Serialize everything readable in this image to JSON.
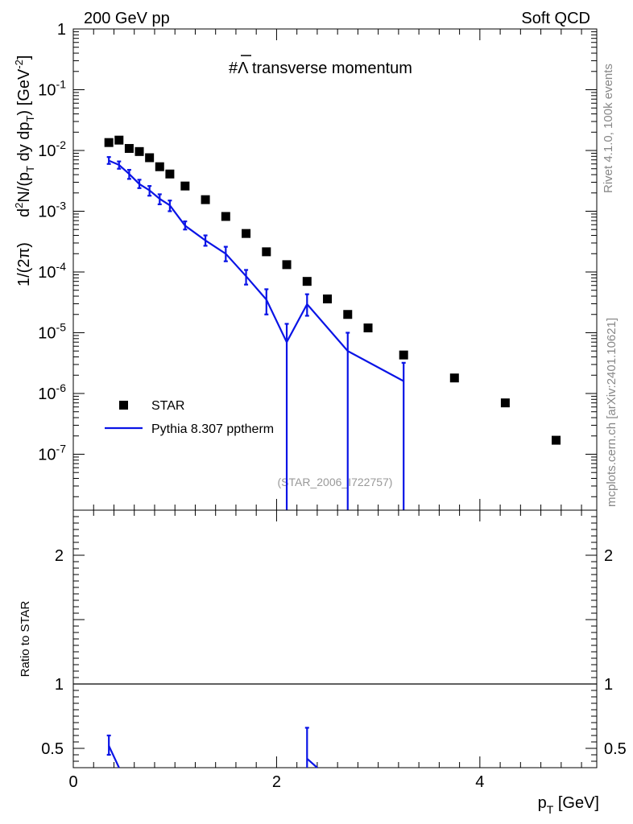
{
  "header": {
    "left": "200 GeV pp",
    "right": "Soft QCD"
  },
  "side": {
    "rivet": "Rivet 4.1.0,  100k events",
    "mcplots": "mcplots.cern.ch [arXiv:2401.10621]"
  },
  "chart_data": [
    {
      "type": "scatter",
      "title": "#Λ̅ transverse momentum",
      "title_prefix": "#",
      "title_symbol": "Λ",
      "title_rest": " transverse momentum",
      "ylabel_prefix": "1/(2π)",
      "ylabel_parts": [
        "d",
        "2",
        "N/(p",
        "T",
        " dy dp",
        "T",
        ") [GeV",
        "-2",
        "]"
      ],
      "xlabel_main": "p",
      "xlabel_sub": "T",
      "xlabel_unit": " [GeV]",
      "watermark": "(STAR_2006_I722757)",
      "yscale": "log",
      "xlim": [
        0,
        5.15
      ],
      "ylim": [
        1.2e-08,
        1
      ],
      "yticks": [
        {
          "v": 1,
          "base": "1",
          "exp": ""
        },
        {
          "v": 0.1,
          "base": "10",
          "exp": "-1"
        },
        {
          "v": 0.01,
          "base": "10",
          "exp": "-2"
        },
        {
          "v": 0.001,
          "base": "10",
          "exp": "-3"
        },
        {
          "v": 0.0001,
          "base": "10",
          "exp": "-4"
        },
        {
          "v": 1e-05,
          "base": "10",
          "exp": "-5"
        },
        {
          "v": 1e-06,
          "base": "10",
          "exp": "-6"
        },
        {
          "v": 1e-07,
          "base": "10",
          "exp": "-7"
        }
      ],
      "legend": [
        {
          "label": "STAR",
          "kind": "marker"
        },
        {
          "label": "Pythia 8.307 pptherm",
          "kind": "line"
        }
      ],
      "series": [
        {
          "name": "STAR",
          "color": "#000000",
          "x": [
            0.35,
            0.45,
            0.55,
            0.65,
            0.75,
            0.85,
            0.95,
            1.1,
            1.3,
            1.5,
            1.7,
            1.9,
            2.1,
            2.3,
            2.5,
            2.7,
            2.9,
            3.25,
            3.75,
            4.25,
            4.75
          ],
          "y": [
            0.0135,
            0.0148,
            0.0108,
            0.0096,
            0.0076,
            0.0054,
            0.0041,
            0.0026,
            0.00155,
            0.00082,
            0.00043,
            0.000215,
            0.000132,
            7e-05,
            3.6e-05,
            2e-05,
            1.2e-05,
            4.3e-06,
            1.8e-06,
            7e-07,
            1.7e-07
          ]
        },
        {
          "name": "Pythia 8.307 pptherm",
          "color": "#0a14e6",
          "x": [
            0.35,
            0.45,
            0.55,
            0.65,
            0.75,
            0.85,
            0.95,
            1.1,
            1.3,
            1.5,
            1.7,
            1.9,
            2.1,
            2.3,
            2.7,
            3.25
          ],
          "y": [
            0.0068,
            0.0058,
            0.0041,
            0.0028,
            0.0022,
            0.0016,
            0.00125,
            0.00058,
            0.00033,
            0.0002,
            8.5e-05,
            3.5e-05,
            7e-06,
            2.95e-05,
            5e-06,
            1.6e-06
          ],
          "y_err_low": [
            0.006,
            0.005,
            0.0034,
            0.0024,
            0.0018,
            0.0013,
            0.001,
            0.0005,
            0.00027,
            0.00015,
            6.2e-05,
            2e-05,
            1e-09,
            1.9e-05,
            1e-09,
            1e-09
          ],
          "y_err_high": [
            0.0078,
            0.0066,
            0.0048,
            0.0033,
            0.0026,
            0.0019,
            0.0015,
            0.00068,
            0.0004,
            0.00026,
            0.000108,
            5.2e-05,
            1.4e-05,
            4.3e-05,
            1e-05,
            3.2e-06
          ]
        }
      ]
    },
    {
      "type": "line",
      "ylabel": "Ratio to STAR",
      "xlim": [
        0,
        5.15
      ],
      "ylim": [
        0.35,
        2.35
      ],
      "yticks": [
        {
          "v": 0.5,
          "label": "0.5"
        },
        {
          "v": 1,
          "label": "1"
        },
        {
          "v": 2,
          "label": "2"
        }
      ],
      "xticks": [
        {
          "v": 0,
          "label": "0"
        },
        {
          "v": 2,
          "label": "2"
        },
        {
          "v": 4,
          "label": "4"
        }
      ],
      "reference_line": 1,
      "series": [
        {
          "name": "Pythia 8.307 pptherm / STAR",
          "color": "#0a14e6",
          "segments": [
            {
              "x": [
                0.35,
                0.45
              ],
              "y": [
                0.52,
                0.3
              ]
            },
            {
              "x": [
                2.3,
                2.4
              ],
              "y": [
                0.42,
                0.3
              ]
            }
          ],
          "errors": [
            {
              "x": 0.35,
              "y_low": 0.45,
              "y_high": 0.6
            },
            {
              "x": 2.3,
              "y_low": 0.3,
              "y_high": 0.66
            }
          ]
        }
      ]
    }
  ]
}
